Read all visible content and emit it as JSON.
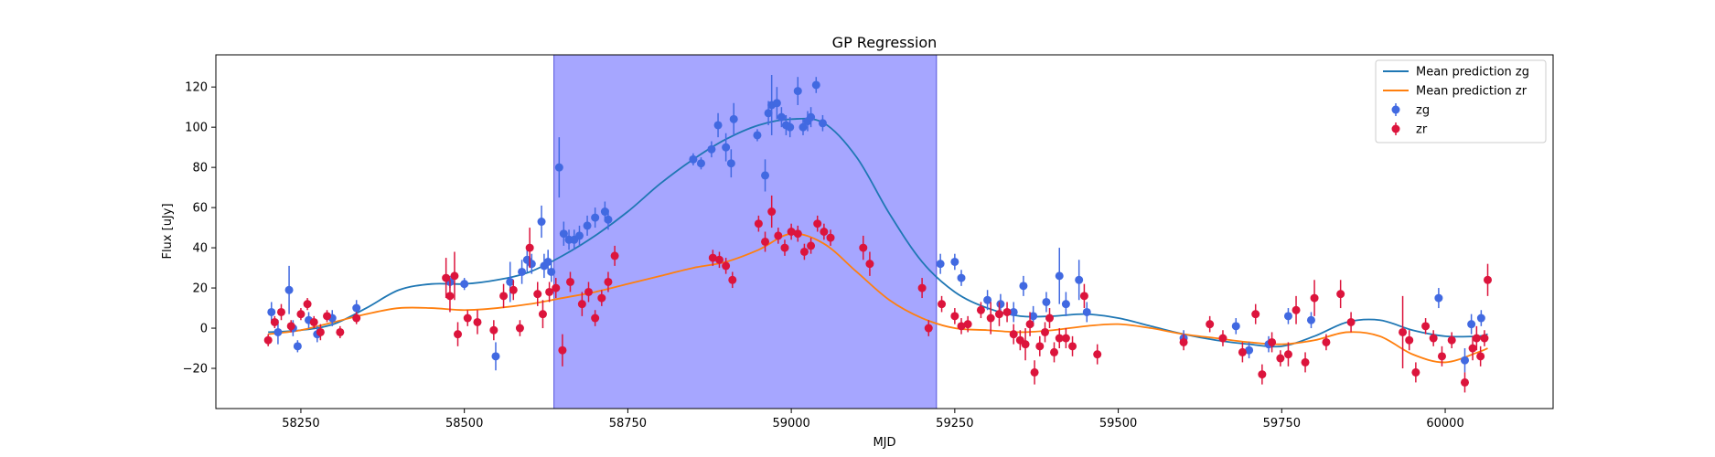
{
  "chart_data": {
    "type": "scatter",
    "title": "GP Regression",
    "xlabel": "MJD",
    "ylabel": "Flux [uJy]",
    "xlim": [
      58120,
      60165
    ],
    "ylim": [
      -40,
      136
    ],
    "xticks": [
      58250,
      58500,
      58750,
      59000,
      59250,
      59500,
      59750,
      60000
    ],
    "yticks": [
      -20,
      0,
      20,
      40,
      60,
      80,
      100,
      120
    ],
    "grid": false,
    "legend_position": "top-right",
    "shaded_region": {
      "x_start": 58637,
      "x_end": 59222,
      "color": "#a6a6ff"
    },
    "legend": [
      {
        "label": "Mean prediction zg",
        "kind": "line",
        "color": "#1f77b4"
      },
      {
        "label": "Mean prediction zr",
        "kind": "line",
        "color": "#ff7f0e"
      },
      {
        "label": "zg",
        "kind": "errorbar",
        "color": "#4169e1"
      },
      {
        "label": "zr",
        "kind": "errorbar",
        "color": "#dc143c"
      }
    ],
    "series": [
      {
        "name": "Mean prediction zg",
        "kind": "line",
        "color": "#1f77b4",
        "x": [
          58200,
          58250,
          58300,
          58350,
          58400,
          58450,
          58500,
          58550,
          58600,
          58650,
          58700,
          58750,
          58800,
          58850,
          58900,
          58950,
          59000,
          59050,
          59100,
          59150,
          59200,
          59250,
          59300,
          59350,
          59400,
          59450,
          59500,
          59550,
          59600,
          59650,
          59700,
          59750,
          59800,
          59850,
          59900,
          59950,
          60000,
          60050,
          60065
        ],
        "y": [
          -2,
          -1,
          2,
          10,
          19,
          22,
          22,
          24,
          28,
          36,
          46,
          58,
          72,
          84,
          94,
          101,
          104,
          102,
          85,
          57,
          33,
          18,
          10,
          6,
          6,
          7,
          5,
          1,
          -3,
          -6,
          -8,
          -9,
          -4,
          3,
          4,
          -1,
          -4,
          -4,
          -3
        ]
      },
      {
        "name": "Mean prediction zr",
        "kind": "line",
        "color": "#ff7f0e",
        "x": [
          58200,
          58250,
          58300,
          58350,
          58400,
          58450,
          58500,
          58550,
          58600,
          58650,
          58700,
          58750,
          58800,
          58850,
          58900,
          58950,
          59000,
          59050,
          59100,
          59150,
          59200,
          59250,
          59300,
          59350,
          59400,
          59450,
          59500,
          59550,
          59600,
          59650,
          59700,
          59750,
          59800,
          59850,
          59900,
          59950,
          60000,
          60050,
          60065
        ],
        "y": [
          -3,
          -1,
          3,
          7,
          10,
          10,
          9,
          10,
          12,
          15,
          18,
          22,
          26,
          30,
          33,
          39,
          47,
          42,
          28,
          14,
          5,
          0,
          -1,
          -2,
          -1,
          1,
          2,
          0,
          -3,
          -5,
          -7,
          -8,
          -6,
          -2,
          -4,
          -13,
          -17,
          -12,
          -10
        ]
      },
      {
        "name": "zg",
        "kind": "errorbar",
        "color": "#4169e1",
        "x": [
          58205,
          58215,
          58232,
          58238,
          58245,
          58262,
          58275,
          58298,
          58335,
          58478,
          58500,
          58548,
          58570,
          58588,
          58596,
          58603,
          58618,
          58622,
          58628,
          58633,
          58645,
          58652,
          58660,
          58668,
          58676,
          58688,
          58700,
          58715,
          58720,
          58850,
          58862,
          58878,
          58888,
          58900,
          58908,
          58912,
          58948,
          58960,
          58965,
          58970,
          58978,
          58985,
          58992,
          58998,
          59010,
          59018,
          59025,
          59030,
          59038,
          59048,
          59228,
          59250,
          59260,
          59300,
          59320,
          59340,
          59355,
          59370,
          59390,
          59410,
          59420,
          59440,
          59452,
          59600,
          59680,
          59700,
          59730,
          59760,
          59795,
          59990,
          60030,
          60040,
          60055
        ],
        "y": [
          8,
          -2,
          19,
          0,
          -9,
          4,
          -3,
          5,
          10,
          23,
          22,
          -14,
          23,
          28,
          34,
          32,
          53,
          31,
          33,
          28,
          80,
          47,
          44,
          44,
          46,
          51,
          55,
          58,
          54,
          84,
          82,
          89,
          101,
          90,
          82,
          104,
          96,
          76,
          107,
          111,
          112,
          105,
          101,
          100,
          118,
          100,
          103,
          105,
          121,
          102,
          32,
          33,
          25,
          14,
          12,
          8,
          21,
          6,
          13,
          26,
          12,
          24,
          8,
          -5,
          1,
          -11,
          -8,
          6,
          4,
          15,
          -16,
          2,
          5
        ],
        "yerr": [
          5,
          6,
          12,
          4,
          3,
          4,
          4,
          4,
          4,
          3,
          3,
          7,
          10,
          6,
          6,
          5,
          8,
          6,
          6,
          5,
          15,
          6,
          5,
          5,
          5,
          5,
          5,
          5,
          5,
          3,
          3,
          4,
          6,
          7,
          7,
          8,
          3,
          8,
          6,
          15,
          8,
          5,
          5,
          5,
          7,
          4,
          5,
          5,
          4,
          4,
          5,
          4,
          4,
          5,
          5,
          5,
          5,
          5,
          5,
          14,
          6,
          10,
          5,
          4,
          4,
          4,
          4,
          4,
          4,
          5,
          6,
          5,
          4
        ]
      },
      {
        "name": "zr",
        "kind": "errorbar",
        "color": "#dc143c",
        "x": [
          58200,
          58210,
          58220,
          58235,
          58250,
          58260,
          58270,
          58280,
          58290,
          58310,
          58335,
          58472,
          58478,
          58485,
          58490,
          58505,
          58520,
          58545,
          58560,
          58575,
          58585,
          58600,
          58612,
          58620,
          58630,
          58640,
          58650,
          58662,
          58680,
          58690,
          58700,
          58710,
          58720,
          58730,
          58880,
          58890,
          58900,
          58910,
          58950,
          58960,
          58970,
          58980,
          58990,
          59000,
          59010,
          59020,
          59030,
          59040,
          59050,
          59060,
          59110,
          59120,
          59200,
          59210,
          59230,
          59250,
          59260,
          59270,
          59290,
          59305,
          59318,
          59330,
          59340,
          59350,
          59358,
          59365,
          59372,
          59380,
          59388,
          59395,
          59402,
          59410,
          59420,
          59430,
          59448,
          59468,
          59600,
          59640,
          59660,
          59690,
          59710,
          59720,
          59735,
          59748,
          59760,
          59772,
          59786,
          59800,
          59818,
          59840,
          59856,
          59935,
          59945,
          59955,
          59970,
          59982,
          59995,
          60010,
          60030,
          60042,
          60048,
          60054,
          60060,
          60065
        ],
        "y": [
          -6,
          3,
          8,
          1,
          7,
          12,
          3,
          -2,
          6,
          -2,
          5,
          25,
          16,
          26,
          -3,
          5,
          3,
          -1,
          16,
          19,
          0,
          40,
          17,
          7,
          18,
          20,
          -11,
          23,
          12,
          18,
          5,
          15,
          23,
          36,
          35,
          34,
          31,
          24,
          52,
          43,
          58,
          46,
          40,
          48,
          47,
          38,
          41,
          52,
          48,
          45,
          40,
          32,
          20,
          0,
          12,
          6,
          1,
          2,
          9,
          5,
          7,
          8,
          -3,
          -6,
          -8,
          2,
          -22,
          -9,
          -2,
          5,
          -12,
          -5,
          -5,
          -9,
          16,
          -13,
          -7,
          2,
          -5,
          -12,
          7,
          -23,
          -7,
          -15,
          -13,
          9,
          -17,
          15,
          -7,
          17,
          3,
          -2,
          -6,
          -22,
          1,
          -5,
          -14,
          -6,
          -27,
          -10,
          -5,
          -14,
          -5,
          24
        ],
        "yerr": [
          3,
          3,
          4,
          3,
          3,
          3,
          3,
          4,
          3,
          3,
          3,
          10,
          8,
          12,
          6,
          4,
          6,
          5,
          6,
          5,
          4,
          10,
          6,
          7,
          5,
          5,
          8,
          5,
          6,
          5,
          4,
          4,
          5,
          5,
          4,
          4,
          4,
          4,
          4,
          5,
          8,
          4,
          4,
          4,
          4,
          4,
          4,
          4,
          4,
          4,
          6,
          6,
          5,
          4,
          4,
          4,
          4,
          4,
          4,
          8,
          6,
          5,
          5,
          5,
          8,
          6,
          6,
          5,
          5,
          5,
          5,
          5,
          5,
          5,
          6,
          5,
          4,
          4,
          4,
          5,
          5,
          5,
          5,
          4,
          6,
          7,
          5,
          9,
          4,
          7,
          5,
          18,
          5,
          5,
          4,
          4,
          5,
          4,
          5,
          6,
          6,
          5,
          4,
          8
        ]
      }
    ]
  }
}
